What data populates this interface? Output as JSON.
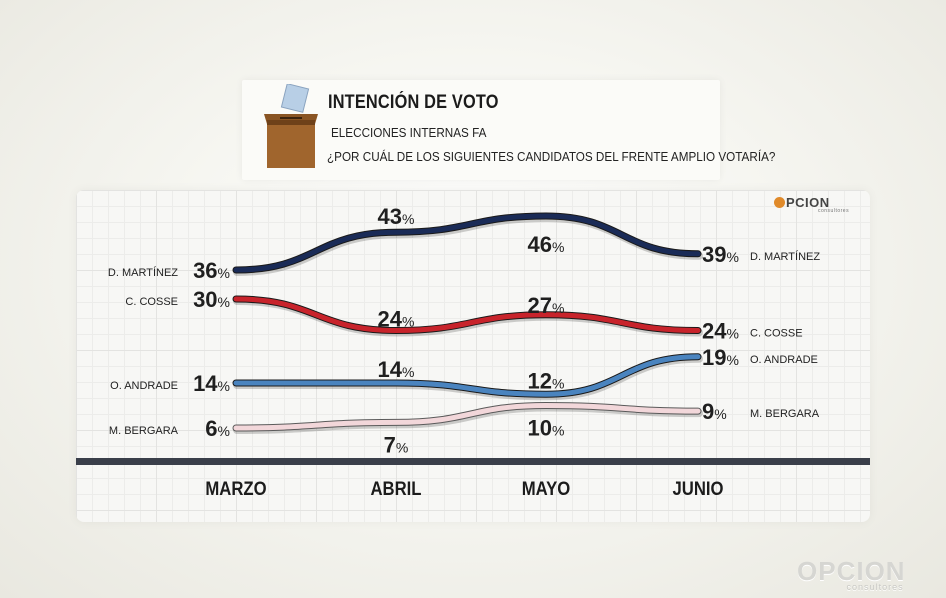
{
  "header": {
    "title": "INTENCIÓN DE VOTO",
    "subtitle": "ELECCIONES INTERNAS FA",
    "question": "¿POR CUÁL DE LOS SIGUIENTES CANDIDATOS DEL FRENTE AMPLIO VOTARÍA?"
  },
  "brand": {
    "top_name": "PCION",
    "top_sub": "consultores",
    "bottom_name": "OPCION",
    "bottom_sub": "consultores"
  },
  "chart_data": {
    "type": "line",
    "title": "INTENCIÓN DE VOTO",
    "subtitle": "ELECCIONES INTERNAS FA",
    "categories": [
      "MARZO",
      "ABRIL",
      "MAYO",
      "JUNIO"
    ],
    "unit": "%",
    "grid": true,
    "series": [
      {
        "name": "D. MARTÍNEZ",
        "values": [
          36,
          43,
          46,
          39
        ],
        "color": "#1a2b57"
      },
      {
        "name": "C. COSSE",
        "values": [
          30,
          24,
          27,
          24
        ],
        "color": "#c8232b"
      },
      {
        "name": "O. ANDRADE",
        "values": [
          14,
          14,
          12,
          19
        ],
        "color": "#4a84bf"
      },
      {
        "name": "M. BERGARA",
        "values": [
          6,
          7,
          10,
          9
        ],
        "color": "#f2d7da"
      }
    ]
  }
}
